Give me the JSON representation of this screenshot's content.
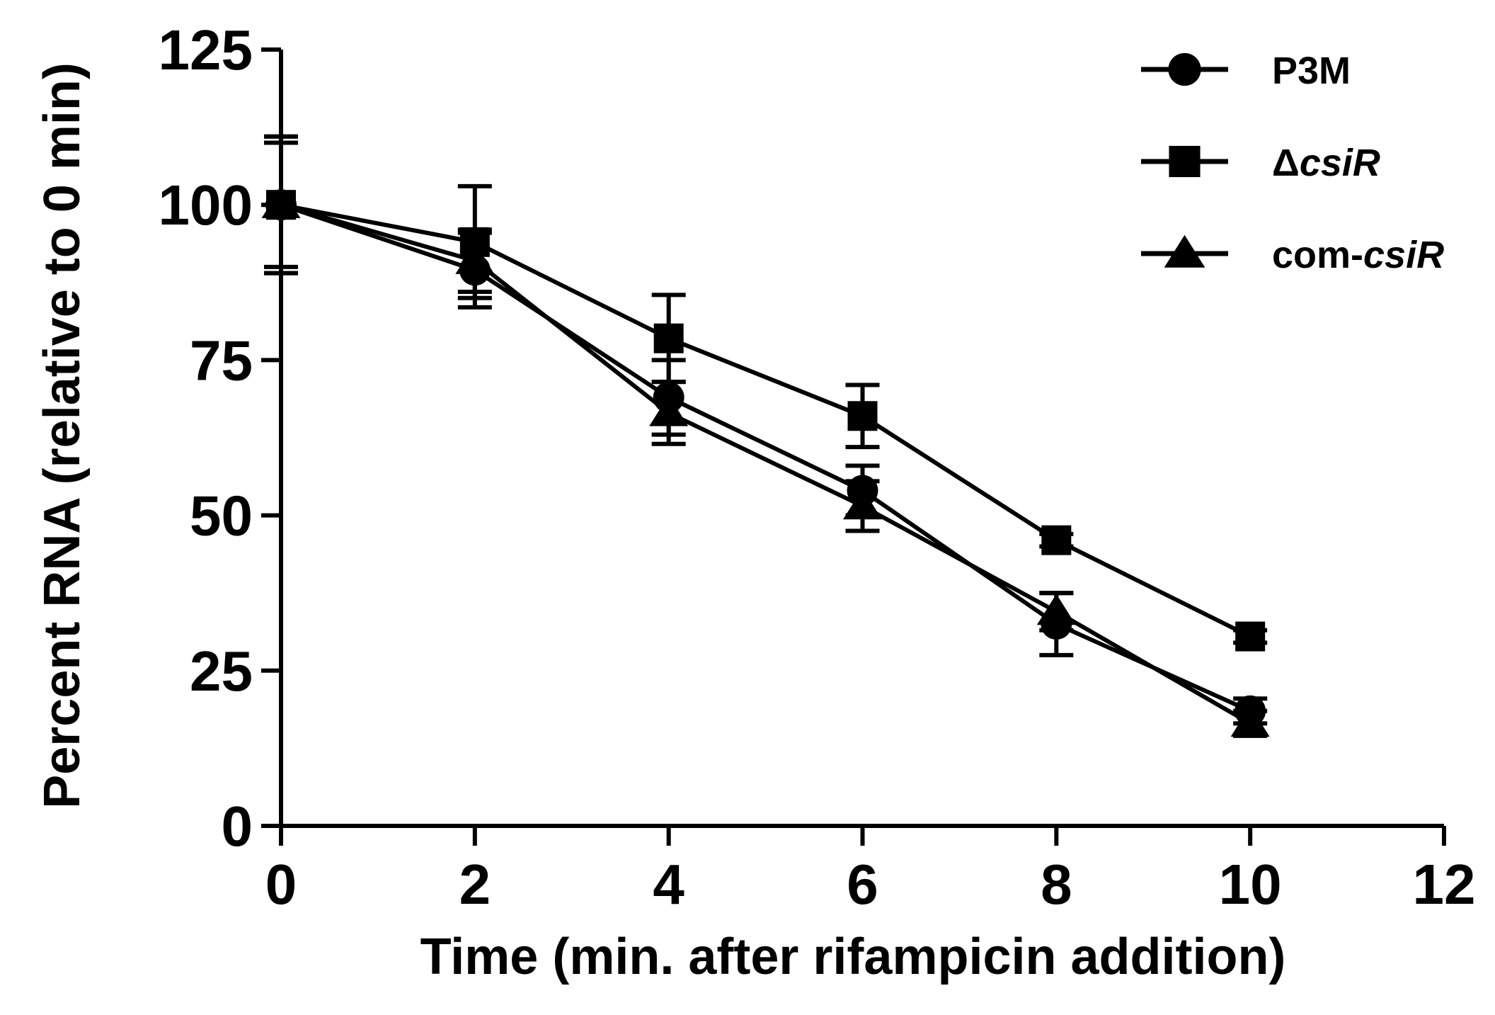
{
  "chart_data": {
    "type": "line",
    "title": "",
    "xlabel": "Time (min. after rifampicin addition)",
    "ylabel": "Percent RNA (relative to 0 min)",
    "xlim": [
      0,
      12
    ],
    "ylim": [
      0,
      125
    ],
    "xticks": [
      0,
      2,
      4,
      6,
      8,
      10,
      12
    ],
    "yticks": [
      0,
      25,
      50,
      75,
      100,
      125
    ],
    "x": [
      0,
      2,
      4,
      6,
      8,
      10
    ],
    "legend_position": "top-right",
    "grid": false,
    "series": [
      {
        "name": "P3M",
        "name_prefix": "P3M",
        "name_italic": "",
        "marker": "circle",
        "values": [
          100,
          89.5,
          69,
          54,
          32.5,
          18.5
        ],
        "errors": [
          11,
          6,
          6,
          4,
          5,
          2
        ]
      },
      {
        "name": "ΔcsiR",
        "name_prefix": "Δ",
        "name_italic": "csiR",
        "marker": "square",
        "values": [
          100,
          94,
          78.5,
          66,
          46,
          30.5
        ],
        "errors": [
          10,
          9,
          7,
          5,
          1,
          1
        ]
      },
      {
        "name": "com-csiR",
        "name_prefix": "com-",
        "name_italic": "csiR",
        "marker": "triangle",
        "values": [
          100,
          91,
          66.5,
          51.5,
          34.5,
          16.5
        ],
        "errors": [
          11,
          5,
          5,
          4,
          3,
          2
        ]
      }
    ]
  }
}
